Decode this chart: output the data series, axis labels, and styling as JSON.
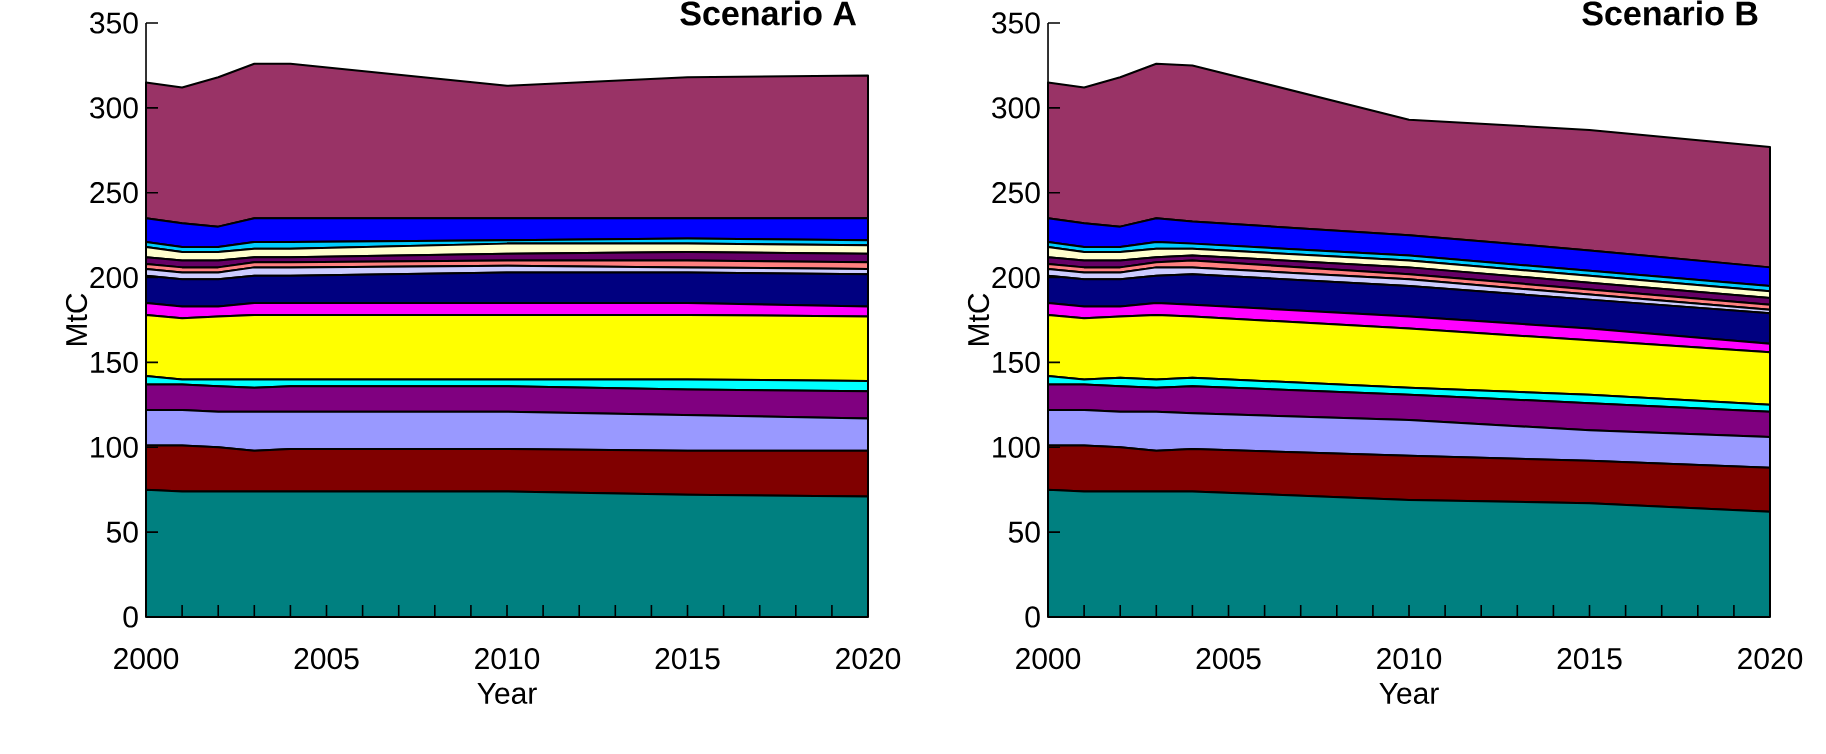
{
  "chart_data": [
    {
      "type": "area",
      "title": "Scenario A",
      "xlabel": "Year",
      "ylabel": "MtC",
      "stacked": true,
      "x": [
        2000,
        2001,
        2002,
        2003,
        2004,
        2010,
        2015,
        2020
      ],
      "xlim": [
        2000,
        2020
      ],
      "xticks": [
        2000,
        2005,
        2010,
        2015,
        2020
      ],
      "ylim": [
        0,
        350
      ],
      "yticks": [
        0,
        50,
        100,
        150,
        200,
        250,
        300,
        350
      ],
      "series": [
        {
          "color": "#008080",
          "values": [
            75,
            74,
            74,
            74,
            74,
            74,
            72,
            71
          ]
        },
        {
          "color": "#800000",
          "values": [
            26,
            27,
            26,
            24,
            25,
            25,
            26,
            27
          ]
        },
        {
          "color": "#9999ff",
          "values": [
            21,
            21,
            21,
            23,
            22,
            22,
            21,
            19
          ]
        },
        {
          "color": "#800080",
          "values": [
            15,
            15,
            15,
            14,
            15,
            15,
            15,
            16
          ]
        },
        {
          "color": "#00ffff",
          "values": [
            5,
            3,
            4,
            5,
            4,
            4,
            6,
            6
          ]
        },
        {
          "color": "#ffff00",
          "values": [
            36,
            36,
            37,
            38,
            38,
            38,
            38,
            38
          ]
        },
        {
          "color": "#ff00ff",
          "values": [
            7,
            7,
            6,
            7,
            7,
            7,
            7,
            6
          ]
        },
        {
          "color": "#000080",
          "values": [
            16,
            16,
            16,
            16,
            16,
            18,
            18,
            19
          ]
        },
        {
          "color": "#ccccff",
          "values": [
            4,
            4,
            4,
            5,
            5,
            4,
            3,
            3
          ]
        },
        {
          "color": "#ff8080",
          "values": [
            3,
            3,
            3,
            3,
            3,
            3,
            4,
            4
          ]
        },
        {
          "color": "#660066",
          "values": [
            4,
            4,
            4,
            3,
            3,
            4,
            5,
            5
          ]
        },
        {
          "color": "#ffffcc",
          "values": [
            6,
            5,
            5,
            5,
            5,
            6,
            5,
            5
          ]
        },
        {
          "color": "#00ccff",
          "values": [
            3,
            3,
            3,
            4,
            4,
            2,
            3,
            3
          ]
        },
        {
          "color": "#0000ff",
          "values": [
            14,
            14,
            12,
            14,
            14,
            13,
            12,
            13
          ]
        },
        {
          "color": "#993366",
          "values": [
            80,
            80,
            88,
            91,
            91,
            78,
            83,
            84
          ]
        }
      ]
    },
    {
      "type": "area",
      "title": "Scenario B",
      "xlabel": "Year",
      "ylabel": "MtC",
      "stacked": true,
      "x": [
        2000,
        2001,
        2002,
        2003,
        2004,
        2010,
        2015,
        2020
      ],
      "xlim": [
        2000,
        2020
      ],
      "xticks": [
        2000,
        2005,
        2010,
        2015,
        2020
      ],
      "ylim": [
        0,
        350
      ],
      "yticks": [
        0,
        50,
        100,
        150,
        200,
        250,
        300,
        350
      ],
      "series": [
        {
          "color": "#008080",
          "values": [
            75,
            74,
            74,
            74,
            74,
            69,
            67,
            62
          ]
        },
        {
          "color": "#800000",
          "values": [
            26,
            27,
            26,
            24,
            25,
            26,
            25,
            26
          ]
        },
        {
          "color": "#9999ff",
          "values": [
            21,
            21,
            21,
            23,
            21,
            21,
            18,
            18
          ]
        },
        {
          "color": "#800080",
          "values": [
            15,
            15,
            15,
            14,
            16,
            15,
            16,
            15
          ]
        },
        {
          "color": "#00ffff",
          "values": [
            5,
            3,
            5,
            5,
            5,
            4,
            5,
            4
          ]
        },
        {
          "color": "#ffff00",
          "values": [
            36,
            36,
            36,
            38,
            36,
            35,
            32,
            31
          ]
        },
        {
          "color": "#ff00ff",
          "values": [
            7,
            7,
            6,
            7,
            7,
            7,
            7,
            5
          ]
        },
        {
          "color": "#000080",
          "values": [
            16,
            16,
            16,
            16,
            18,
            18,
            17,
            18
          ]
        },
        {
          "color": "#ccccff",
          "values": [
            4,
            4,
            4,
            5,
            4,
            4,
            3,
            2
          ]
        },
        {
          "color": "#ff8080",
          "values": [
            3,
            3,
            3,
            3,
            4,
            3,
            3,
            3
          ]
        },
        {
          "color": "#660066",
          "values": [
            4,
            4,
            4,
            3,
            3,
            4,
            4,
            4
          ]
        },
        {
          "color": "#ffffcc",
          "values": [
            6,
            5,
            5,
            5,
            4,
            4,
            4,
            4
          ]
        },
        {
          "color": "#00ccff",
          "values": [
            3,
            3,
            3,
            4,
            3,
            3,
            3,
            3
          ]
        },
        {
          "color": "#0000ff",
          "values": [
            14,
            14,
            12,
            14,
            13,
            12,
            12,
            11
          ]
        },
        {
          "color": "#993366",
          "values": [
            80,
            80,
            88,
            91,
            92,
            68,
            71,
            71
          ]
        }
      ]
    }
  ]
}
